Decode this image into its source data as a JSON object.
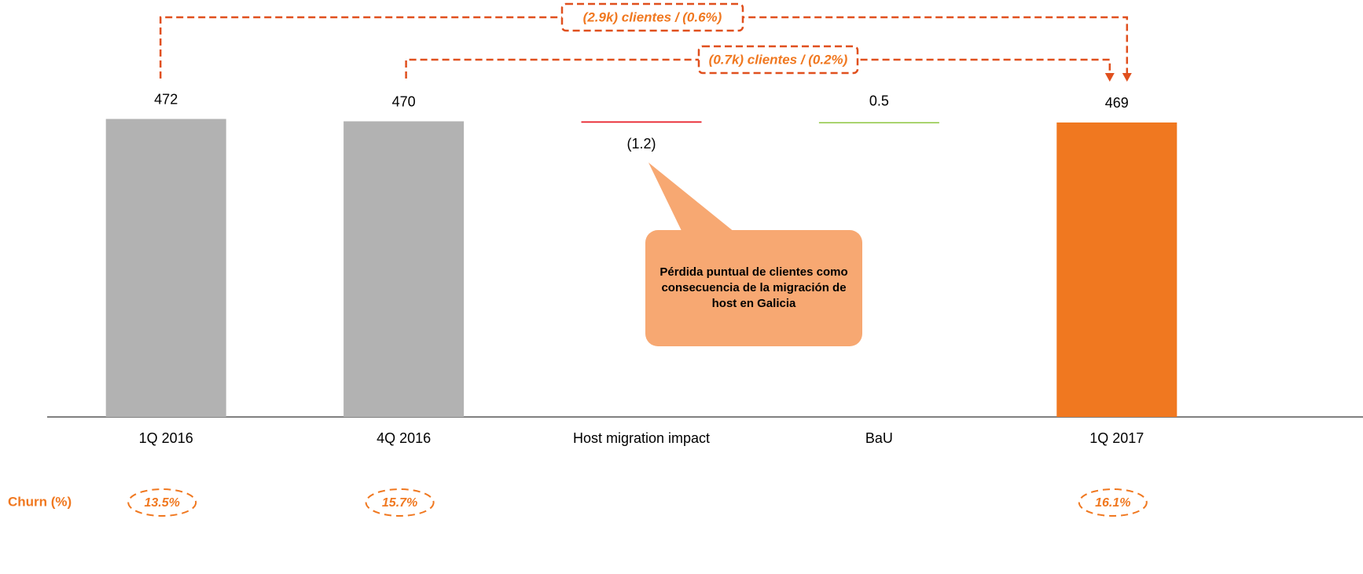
{
  "chart_data": {
    "type": "waterfall",
    "categories": [
      "1Q 2016",
      "4Q 2016",
      "Host migration impact",
      "BaU",
      "1Q 2017"
    ],
    "values": [
      472,
      470,
      -1.2,
      0.5,
      469
    ],
    "value_labels": [
      "472",
      "470",
      "(1.2)",
      "0.5",
      "469"
    ],
    "kinds": [
      "total",
      "total",
      "delta",
      "delta",
      "total"
    ],
    "colors": [
      "#b2b2b2",
      "#b2b2b2",
      "#e8202a",
      "#8dc63f",
      "#f07820"
    ],
    "ylim": [
      219,
      475
    ],
    "brackets": [
      {
        "text": "(2.9k) clientes / (0.6%)",
        "from": "1Q 2016",
        "to": "1Q 2017"
      },
      {
        "text": "(0.7k) clientes / (0.2%)",
        "from": "4Q 2016",
        "to": "1Q 2017"
      }
    ],
    "callout": {
      "text": "Pérdida puntual de clientes como consecuencia de la migración de host en Galicia",
      "target": "Host migration impact"
    },
    "churn": {
      "label": "Churn (%)",
      "values": [
        13.5,
        15.7,
        null,
        null,
        16.1
      ],
      "value_labels": [
        "13.5%",
        "15.7%",
        null,
        null,
        "16.1%"
      ]
    }
  }
}
